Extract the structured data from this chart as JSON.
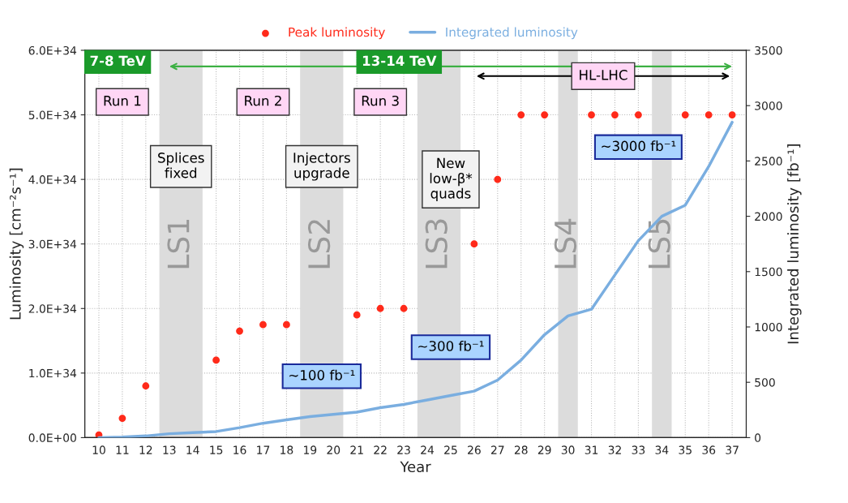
{
  "chart_data": {
    "type": "scatter",
    "xlabel": "Year",
    "ylabel": "Luminosity [cm⁻²s⁻¹]",
    "y2label": "Integrated luminosity [fb⁻¹]",
    "categories": [
      "10",
      "11",
      "12",
      "13",
      "14",
      "15",
      "16",
      "17",
      "18",
      "19",
      "20",
      "21",
      "22",
      "23",
      "24",
      "25",
      "26",
      "27",
      "28",
      "29",
      "30",
      "31",
      "32",
      "33",
      "34",
      "35",
      "36",
      "37"
    ],
    "series": [
      {
        "name": "Peak luminosity",
        "marker": "circle",
        "color": "#ff2a1a",
        "values": [
          4e+32,
          3e+33,
          8e+33,
          null,
          null,
          1.2e+34,
          1.65e+34,
          1.75e+34,
          1.75e+34,
          null,
          null,
          1.9e+34,
          2e+34,
          2e+34,
          null,
          null,
          3e+34,
          4e+34,
          5e+34,
          5e+34,
          null,
          5e+34,
          5e+34,
          5e+34,
          null,
          5e+34,
          5e+34,
          5e+34
        ]
      },
      {
        "name": "Integrated luminosity",
        "type": "line",
        "marker": "none",
        "axis": "y2",
        "color": "#7aaee0",
        "values": [
          0,
          5,
          15,
          35,
          45,
          55,
          90,
          130,
          160,
          190,
          210,
          230,
          270,
          300,
          340,
          380,
          420,
          520,
          700,
          930,
          1100,
          1160,
          1470,
          1780,
          2000,
          2100,
          2450,
          2850
        ]
      }
    ],
    "ylim": [
      0,
      6e+34
    ],
    "yticks": [
      {
        "value": 0,
        "label": "0.0E+00"
      },
      {
        "value": 1e+34,
        "label": "1.0E+34"
      },
      {
        "value": 2e+34,
        "label": "2.0E+34"
      },
      {
        "value": 3e+34,
        "label": "3.0E+34"
      },
      {
        "value": 4e+34,
        "label": "4.0E+34"
      },
      {
        "value": 5e+34,
        "label": "5.0E+34"
      },
      {
        "value": 6e+34,
        "label": "6.0E+34"
      }
    ],
    "y2lim": [
      0,
      3500
    ],
    "y2ticks": [
      0,
      500,
      1000,
      1500,
      2000,
      2500,
      3000,
      3500
    ],
    "bands": [
      {
        "axis": "x",
        "from": "13",
        "to": "14",
        "label": "LS1",
        "color": "#dcdcdc"
      },
      {
        "axis": "x",
        "from": "19",
        "to": "20",
        "label": "LS2",
        "color": "#dcdcdc"
      },
      {
        "axis": "x",
        "from": "24",
        "to": "25",
        "label": "LS3",
        "color": "#dcdcdc"
      },
      {
        "axis": "x",
        "from": "30",
        "to": "30",
        "label": "LS4",
        "color": "#dcdcdc"
      },
      {
        "axis": "x",
        "from": "34",
        "to": "34",
        "label": "LS5",
        "color": "#dcdcdc"
      }
    ],
    "annotations": [
      "7-8 TeV",
      "13-14 TeV",
      "Run 1",
      "Run 2",
      "Run 3",
      "HL-LHC",
      "Splices\nfixed",
      "Injectors\nupgrade",
      "New\nlow-β*\nquads",
      "~100 fb⁻¹",
      "~300 fb⁻¹",
      "~3000 fb⁻¹"
    ],
    "grid": true,
    "legend": "top",
    "line_style": "solid"
  }
}
